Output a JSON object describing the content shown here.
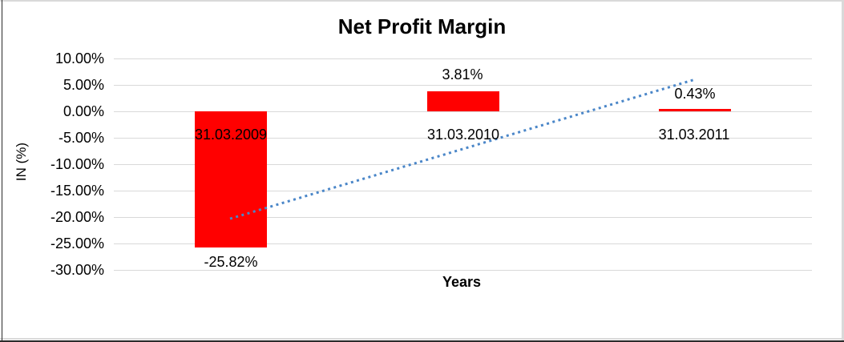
{
  "window": {
    "background": "#ffffff",
    "frame_light_color": "#d9d9d9",
    "frame_dark_color": "#2b2b2b"
  },
  "chart_data": {
    "type": "bar",
    "title": "Net Profit Margin",
    "xlabel": "Years",
    "ylabel": "IN (%)",
    "categories": [
      "31.03.2009",
      "31.03.2010",
      "31.03.2011"
    ],
    "values": [
      -25.82,
      3.81,
      0.43
    ],
    "value_labels": [
      "-25.82%",
      "3.81%",
      "0.43%"
    ],
    "ylim": [
      -30,
      10
    ],
    "ytick_step": 5,
    "yticks": [
      "10.00%",
      "5.00%",
      "0.00%",
      "-5.00%",
      "-10.00%",
      "-15.00%",
      "-20.00%",
      "-25.00%",
      "-30.00%"
    ],
    "grid": true,
    "legend": "none",
    "bar_color": "#ff0000",
    "gridline_color": "#d9d9d9",
    "text_color": "#000000",
    "trendline": {
      "type": "linear",
      "style": "dotted",
      "color": "#4a86c8",
      "start_pct": -20.32,
      "end_pct": 5.94
    }
  }
}
